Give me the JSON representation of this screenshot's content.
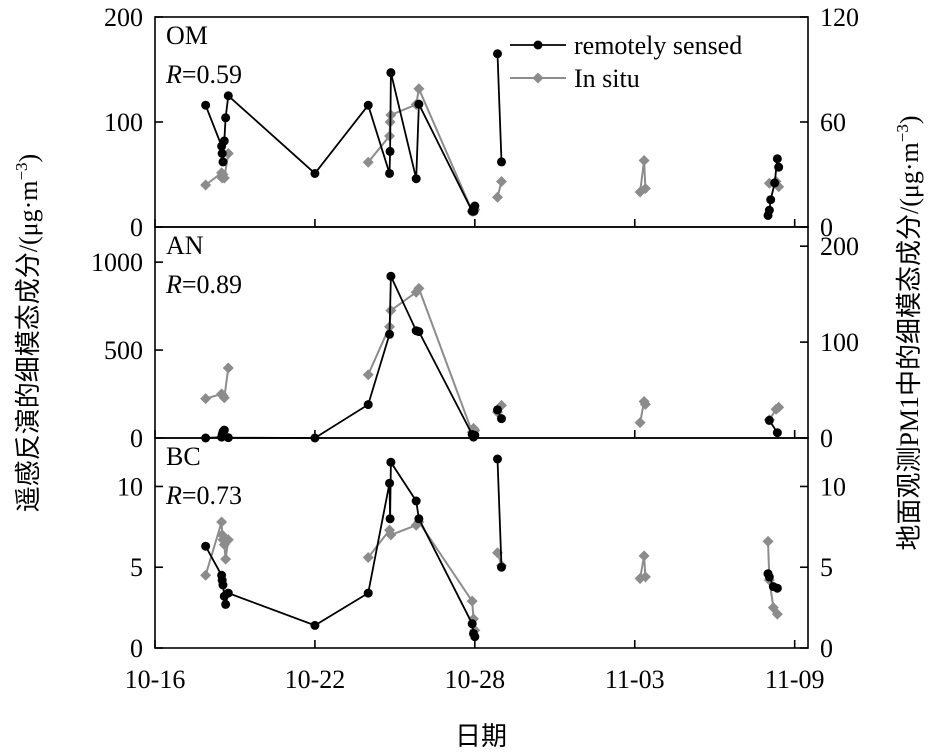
{
  "chart_data": {
    "type": "line",
    "x_label": "日期",
    "y_left_label": "遥感反演的细模态成分/(μg·m",
    "y_right_label": "地面观测PM1中的细模态成分/(μg·m",
    "unit_exponent": "−3",
    "unit_close": ")",
    "x_range_days": [
      0,
      24.5
    ],
    "x_ticks": [
      {
        "label": "10-16",
        "day": 0
      },
      {
        "label": "10-22",
        "day": 6
      },
      {
        "label": "10-28",
        "day": 12
      },
      {
        "label": "11-03",
        "day": 18
      },
      {
        "label": "11-09",
        "day": 24
      }
    ],
    "legend": {
      "position": "top-right",
      "entries": [
        {
          "series": "remote",
          "label": "remotely sensed"
        },
        {
          "series": "insitu",
          "label": "In situ"
        }
      ]
    },
    "series_style": {
      "remote": {
        "color": "#000000",
        "marker": "circle"
      },
      "insitu": {
        "color": "#8c8c8c",
        "marker": "diamond"
      }
    },
    "panels": [
      {
        "name": "OM",
        "r_prefix": "R",
        "r_value": "=0.59",
        "left_axis": {
          "range": [
            0,
            200
          ],
          "ticks": [
            0,
            100,
            200
          ]
        },
        "right_axis": {
          "range": [
            0,
            120
          ],
          "ticks": [
            0,
            60,
            120
          ]
        },
        "remote": [
          [
            [
              1.9,
              116
            ],
            [
              2.5,
              77
            ],
            [
              2.52,
              70
            ],
            [
              2.55,
              62
            ],
            [
              2.6,
              82
            ],
            [
              2.65,
              104
            ],
            [
              2.75,
              125
            ],
            [
              6.0,
              51
            ],
            [
              8.0,
              116
            ],
            [
              8.8,
              51
            ],
            [
              8.82,
              72
            ],
            [
              8.85,
              147
            ],
            [
              9.8,
              46
            ],
            [
              9.9,
              117
            ],
            [
              11.9,
              15
            ],
            [
              11.95,
              18
            ],
            [
              11.97,
              15
            ],
            [
              12.0,
              20
            ]
          ],
          [
            [
              12.85,
              165
            ],
            [
              13.0,
              62
            ]
          ],
          [
            [
              23.0,
              11
            ],
            [
              23.05,
              16
            ],
            [
              23.1,
              26
            ],
            [
              23.25,
              42
            ],
            [
              23.35,
              65
            ],
            [
              23.4,
              57
            ]
          ]
        ],
        "insitu": [
          [
            [
              1.9,
              24
            ],
            [
              2.5,
              31
            ],
            [
              2.52,
              28
            ],
            [
              2.55,
              30
            ],
            [
              2.6,
              28
            ],
            [
              2.75,
              42
            ]
          ],
          [
            [
              8.0,
              37
            ],
            [
              8.8,
              52
            ],
            [
              8.82,
              60
            ],
            [
              8.85,
              64
            ],
            [
              9.8,
              70
            ],
            [
              9.9,
              79
            ],
            [
              11.9,
              9
            ],
            [
              11.95,
              9
            ],
            [
              12.0,
              10
            ]
          ],
          [
            [
              12.85,
              17
            ],
            [
              13.0,
              26
            ]
          ],
          [
            [
              18.2,
              20
            ],
            [
              18.35,
              38
            ],
            [
              18.4,
              22
            ]
          ],
          [
            [
              23.05,
              25
            ],
            [
              23.3,
              26
            ],
            [
              23.4,
              23
            ]
          ]
        ]
      },
      {
        "name": "AN",
        "r_prefix": "R",
        "r_value": "=0.89",
        "left_axis": {
          "range": [
            0,
            1200
          ],
          "ticks": [
            0,
            500,
            1000
          ]
        },
        "right_axis": {
          "range": [
            0,
            220
          ],
          "ticks": [
            0,
            100,
            200
          ]
        },
        "remote": [
          [
            [
              1.9,
              0
            ],
            [
              2.5,
              5
            ],
            [
              2.52,
              20
            ],
            [
              2.55,
              35
            ],
            [
              2.6,
              45
            ],
            [
              2.75,
              2
            ],
            [
              6.0,
              0
            ],
            [
              8.0,
              190
            ],
            [
              8.8,
              590
            ],
            [
              8.85,
              920
            ],
            [
              9.8,
              610
            ],
            [
              9.9,
              605
            ],
            [
              11.9,
              20
            ],
            [
              11.95,
              5
            ],
            [
              12.0,
              15
            ]
          ],
          [
            [
              12.85,
              160
            ],
            [
              13.0,
              110
            ]
          ],
          [
            [
              23.05,
              100
            ],
            [
              23.35,
              30
            ]
          ]
        ],
        "insitu": [
          [
            [
              1.9,
              41
            ],
            [
              2.5,
              46
            ],
            [
              2.55,
              44
            ],
            [
              2.6,
              42
            ],
            [
              2.75,
              73
            ]
          ],
          [
            [
              8.0,
              66
            ],
            [
              8.8,
              116
            ],
            [
              8.85,
              133
            ],
            [
              9.8,
              152
            ],
            [
              9.9,
              156
            ],
            [
              11.9,
              6
            ],
            [
              11.95,
              10
            ],
            [
              12.0,
              8
            ]
          ],
          [
            [
              12.85,
              27
            ],
            [
              13.0,
              34
            ]
          ],
          [
            [
              18.2,
              16
            ],
            [
              18.35,
              38
            ],
            [
              18.4,
              35
            ]
          ],
          [
            [
              23.05,
              19
            ],
            [
              23.3,
              30
            ],
            [
              23.4,
              32
            ]
          ]
        ]
      },
      {
        "name": "BC",
        "r_prefix": "R",
        "r_value": "=0.73",
        "left_axis": {
          "range": [
            0,
            13
          ],
          "ticks": [
            0,
            5,
            10
          ]
        },
        "right_axis": {
          "range": [
            0,
            13
          ],
          "ticks": [
            0,
            5,
            10
          ]
        },
        "remote": [
          [
            [
              1.9,
              6.3
            ],
            [
              2.5,
              4.5
            ],
            [
              2.52,
              4.2
            ],
            [
              2.55,
              3.9
            ],
            [
              2.6,
              3.2
            ],
            [
              2.65,
              2.7
            ],
            [
              2.75,
              3.4
            ],
            [
              6.0,
              1.4
            ],
            [
              8.0,
              3.4
            ],
            [
              8.8,
              10.2
            ],
            [
              8.82,
              8.0
            ],
            [
              8.85,
              11.5
            ],
            [
              9.8,
              9.1
            ],
            [
              9.9,
              8.0
            ],
            [
              11.9,
              1.5
            ],
            [
              11.95,
              0.9
            ],
            [
              12.0,
              0.7
            ]
          ],
          [
            [
              12.85,
              11.7
            ],
            [
              13.0,
              5.0
            ]
          ],
          [
            [
              23.0,
              4.6
            ],
            [
              23.05,
              4.4
            ],
            [
              23.2,
              3.8
            ],
            [
              23.35,
              3.7
            ]
          ]
        ],
        "insitu": [
          [
            [
              1.9,
              4.5
            ],
            [
              2.5,
              7.8
            ],
            [
              2.52,
              7.0
            ],
            [
              2.55,
              6.7
            ],
            [
              2.6,
              6.4
            ],
            [
              2.65,
              5.5
            ],
            [
              2.75,
              6.7
            ]
          ],
          [
            [
              8.0,
              5.6
            ],
            [
              8.8,
              7.3
            ],
            [
              8.85,
              7.0
            ],
            [
              9.8,
              7.6
            ],
            [
              9.9,
              7.8
            ],
            [
              11.9,
              2.9
            ],
            [
              11.95,
              1.8
            ],
            [
              12.0,
              1.1
            ]
          ],
          [
            [
              12.85,
              5.9
            ],
            [
              13.0,
              5.1
            ]
          ],
          [
            [
              18.2,
              4.3
            ],
            [
              18.35,
              5.7
            ],
            [
              18.4,
              4.4
            ]
          ],
          [
            [
              23.0,
              6.6
            ],
            [
              23.05,
              4.2
            ],
            [
              23.2,
              2.5
            ],
            [
              23.35,
              2.1
            ]
          ]
        ]
      }
    ]
  }
}
